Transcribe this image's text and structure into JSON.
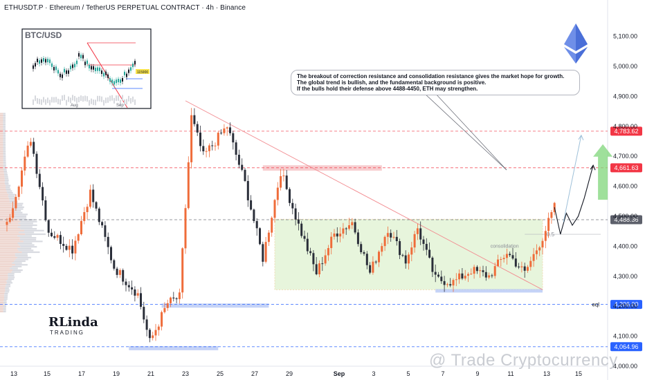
{
  "header": {
    "title": "ETHUSDT.P · Ethereum / TetherUS PERPETUAL CONTRACT · 4h · Binance"
  },
  "callout": {
    "line1": "The breakout of correction resistance and consolidation resistance gives the market hope for growth.",
    "line2": "The global trend is bullish, and the fundamental background is positive.",
    "line3": "If the bulls hold their defense above 4488-4450, ETH may strengthen."
  },
  "labels": {
    "consolidation": "consolidation",
    "fib": "0.5",
    "eql": "eql",
    "watermark": "@ Trade Cryptocurrency",
    "logo_big": "RLinda",
    "logo_small": "TRADING",
    "inset_title": "BTC/USD",
    "inset_x_aug": "Aug",
    "inset_x_sep": "Sep",
    "inset_price": "115900"
  },
  "colors": {
    "up": "#ef6c3a",
    "down": "#2a2e39",
    "key_level": "#f23645",
    "support": "#2962ff",
    "zone": "#d4edc0",
    "axis_text": "#131722"
  },
  "chart_data": {
    "type": "candlestick",
    "title": "ETHUSDT.P · Ethereum / TetherUS PERPETUAL CONTRACT · 4h · Binance",
    "ylim": [
      4000,
      5175
    ],
    "y_ticks": [
      4000,
      4100,
      4200,
      4300,
      4400,
      4500,
      4600,
      4700,
      4800,
      4900,
      5000,
      5100
    ],
    "y_tick_labels": [
      "4,000.00",
      "4,100.00",
      "4,200.00",
      "4,300.00",
      "4,400.00",
      "4,500.00",
      "4,600.00",
      "4,700.00",
      "4,800.00",
      "4,900.00",
      "5,000.00",
      "5,100.00"
    ],
    "x_tick_labels": [
      "13",
      "15",
      "17",
      "19",
      "21",
      "23",
      "25",
      "27",
      "29",
      "Sep",
      "3",
      "5",
      "7",
      "9",
      "11",
      "13",
      "15"
    ],
    "key_levels": [
      {
        "value": 4783.62,
        "label": "4,783.62",
        "style": "dashed",
        "color": "#f23645"
      },
      {
        "value": 4661.63,
        "label": "4,661.63",
        "style": "dashed",
        "color": "#f23645"
      },
      {
        "value": 4488.36,
        "label": "4,488.36",
        "style": "dashed",
        "color": "#5d606b"
      },
      {
        "value": 4206.0,
        "label": "4,206.00",
        "style": "dashed",
        "color": "#2962ff"
      },
      {
        "value": 4064.96,
        "label": "4,064.96",
        "style": "dashed",
        "color": "#2962ff"
      }
    ],
    "consolidation_zone": {
      "top": 4490,
      "bottom": 4255,
      "label": "consolidation"
    },
    "fib_level": {
      "value": 4440,
      "label": "0.5"
    },
    "anchors": [
      {
        "i": 0,
        "price": 4470
      },
      {
        "i": 8,
        "price": 4760
      },
      {
        "i": 14,
        "price": 4450
      },
      {
        "i": 22,
        "price": 4390
      },
      {
        "i": 28,
        "price": 4580
      },
      {
        "i": 36,
        "price": 4330
      },
      {
        "i": 44,
        "price": 4240
      },
      {
        "i": 48,
        "price": 4080
      },
      {
        "i": 54,
        "price": 4210
      },
      {
        "i": 58,
        "price": 4230
      },
      {
        "i": 62,
        "price": 4830
      },
      {
        "i": 66,
        "price": 4700
      },
      {
        "i": 74,
        "price": 4800
      },
      {
        "i": 80,
        "price": 4610
      },
      {
        "i": 86,
        "price": 4360
      },
      {
        "i": 92,
        "price": 4650
      },
      {
        "i": 98,
        "price": 4470
      },
      {
        "i": 104,
        "price": 4310
      },
      {
        "i": 110,
        "price": 4440
      },
      {
        "i": 116,
        "price": 4480
      },
      {
        "i": 122,
        "price": 4310
      },
      {
        "i": 128,
        "price": 4460
      },
      {
        "i": 134,
        "price": 4350
      },
      {
        "i": 138,
        "price": 4460
      },
      {
        "i": 144,
        "price": 4290
      },
      {
        "i": 150,
        "price": 4280
      },
      {
        "i": 156,
        "price": 4320
      },
      {
        "i": 162,
        "price": 4300
      },
      {
        "i": 168,
        "price": 4380
      },
      {
        "i": 174,
        "price": 4310
      },
      {
        "i": 180,
        "price": 4430
      },
      {
        "i": 184,
        "price": 4530
      }
    ],
    "projection": [
      4530,
      4440,
      4510,
      4470,
      4500,
      4560,
      4670
    ],
    "candle_count": 185
  }
}
